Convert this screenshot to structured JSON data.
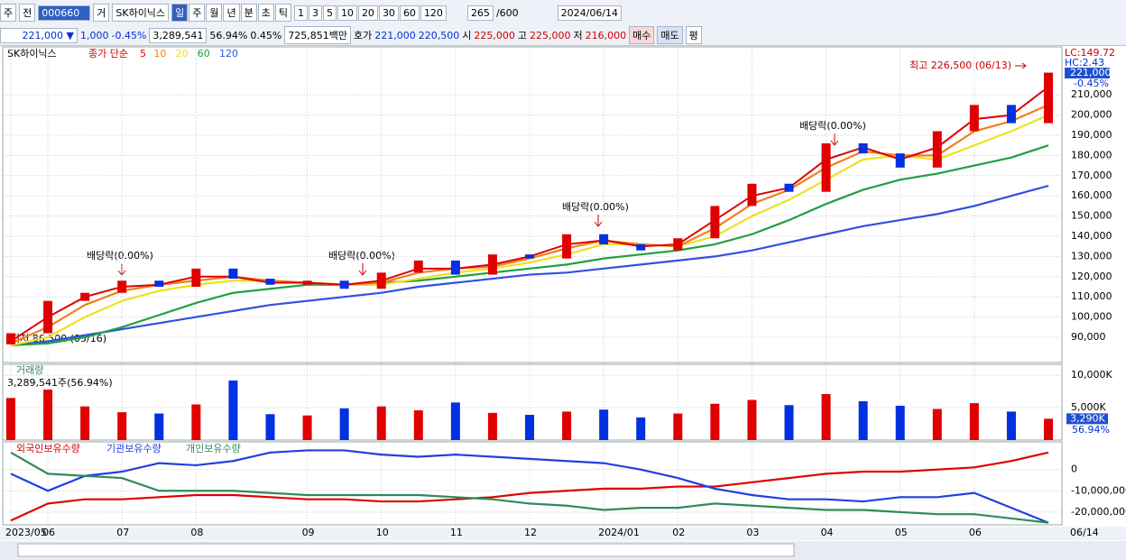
{
  "toolbar": {
    "period": "주",
    "prefix": "전",
    "code": "000660",
    "mode": "거",
    "name": "SK하이닉스",
    "intervals": [
      "일",
      "주",
      "월",
      "년",
      "분",
      "초",
      "틱"
    ],
    "counts": [
      "1",
      "3",
      "5",
      "10",
      "20",
      "30",
      "60",
      "120"
    ],
    "visible": "265",
    "total": "/600",
    "date": "2024/06/14"
  },
  "quote": {
    "price": "221,000 ▼",
    "change": "1,000",
    "change_pct": "-0.45%",
    "volume": "3,289,541",
    "volume_ratio": "56.94%",
    "turnover": "0.45%",
    "amount": "725,851백만",
    "bid_ask_label": "호가",
    "ask": "221,000",
    "bid": "220,500",
    "open_label": "시",
    "open": "225,000",
    "high_label": "고",
    "high": "225,000",
    "low_label": "저",
    "low": "216,000",
    "buy": "매수",
    "sell": "매도",
    "avg": "평"
  },
  "chart_data": [
    {
      "type": "candlestick",
      "legend_title": "SK하이닉스",
      "ma_label": "종가 단순",
      "lc": "LC:149.72",
      "hc": "HC:2.43",
      "last_price": "221,000",
      "last_change": "-0.45%",
      "high_note": "최고 226,500 (06/13)",
      "low_note": "최저 86,500 (05/16)",
      "ex_dividend": [
        "배당락(0.00%)",
        "배당락(0.00%)",
        "배당락(0.00%)",
        "배당락(0.00%)"
      ],
      "cursor_date": "06/14",
      "categories": [
        "2023/05",
        "06",
        null,
        "07",
        null,
        "08",
        null,
        null,
        "09",
        null,
        "10",
        null,
        "11",
        null,
        "12",
        null,
        "2024/01",
        null,
        "02",
        null,
        "03",
        null,
        "04",
        null,
        "05",
        null,
        "06",
        null,
        null
      ],
      "open": [
        86500,
        92000,
        108000,
        112000,
        118000,
        115000,
        124000,
        119000,
        116000,
        118000,
        114000,
        122000,
        128000,
        121000,
        131000,
        129000,
        141000,
        136000,
        133000,
        139000,
        155000,
        166000,
        162000,
        186000,
        181000,
        174000,
        192000,
        205000,
        196000
      ],
      "close": [
        92000,
        108000,
        112000,
        118000,
        115000,
        124000,
        119000,
        116000,
        118000,
        114000,
        122000,
        128000,
        121000,
        131000,
        129000,
        141000,
        136000,
        133000,
        139000,
        155000,
        166000,
        162000,
        186000,
        181000,
        174000,
        192000,
        205000,
        196000,
        221000
      ],
      "up_color": "#e00000",
      "down_color": "#0030e0",
      "series": [
        {
          "name": "5",
          "color": "#e00000",
          "values": [
            88000,
            100000,
            110000,
            115000,
            116000,
            120000,
            120000,
            117000,
            117000,
            116000,
            118000,
            124000,
            124000,
            126000,
            130000,
            136000,
            138000,
            135000,
            136000,
            148000,
            160000,
            164000,
            178000,
            184000,
            178000,
            184000,
            198000,
            200000,
            214000
          ]
        },
        {
          "name": "10",
          "color": "#f08020",
          "values": [
            87000,
            95000,
            106000,
            113000,
            116000,
            118000,
            120000,
            118000,
            117000,
            116000,
            117000,
            122000,
            124000,
            125000,
            129000,
            134000,
            138000,
            136000,
            135000,
            144000,
            156000,
            163000,
            174000,
            182000,
            180000,
            180000,
            192000,
            197000,
            205000
          ]
        },
        {
          "name": "20",
          "color": "#f0e020",
          "values": [
            86000,
            90000,
            100000,
            108000,
            113000,
            116000,
            118000,
            118000,
            117000,
            116000,
            116000,
            119000,
            122000,
            124000,
            127000,
            131000,
            136000,
            136000,
            135000,
            140000,
            150000,
            158000,
            168000,
            178000,
            180000,
            178000,
            185000,
            192000,
            200000
          ]
        },
        {
          "name": "60",
          "color": "#20a040",
          "values": [
            86000,
            87000,
            90000,
            95000,
            101000,
            107000,
            112000,
            114000,
            116000,
            116000,
            117000,
            118000,
            120000,
            122000,
            124000,
            126000,
            129000,
            131000,
            133000,
            136000,
            141000,
            148000,
            156000,
            163000,
            168000,
            171000,
            175000,
            179000,
            185000
          ]
        },
        {
          "name": "120",
          "color": "#3050e0",
          "values": [
            86000,
            88000,
            91000,
            94000,
            97000,
            100000,
            103000,
            106000,
            108000,
            110000,
            112000,
            115000,
            117000,
            119000,
            121000,
            122000,
            124000,
            126000,
            128000,
            130000,
            133000,
            137000,
            141000,
            145000,
            148000,
            151000,
            155000,
            160000,
            165000
          ]
        }
      ],
      "ylim": [
        77500,
        233750
      ],
      "yticks": [
        {
          "value": 90000,
          "label": "90,000"
        },
        {
          "value": 100000,
          "label": "100,000"
        },
        {
          "value": 110000,
          "label": "110,000"
        },
        {
          "value": 120000,
          "label": "120,000"
        },
        {
          "value": 130000,
          "label": "130,000"
        },
        {
          "value": 140000,
          "label": "140,000"
        },
        {
          "value": 150000,
          "label": "150,000"
        },
        {
          "value": 160000,
          "label": "160,000"
        },
        {
          "value": 170000,
          "label": "170,000"
        },
        {
          "value": 180000,
          "label": "180,000"
        },
        {
          "value": 190000,
          "label": "190,000"
        },
        {
          "value": 200000,
          "label": "200,000"
        },
        {
          "value": 210000,
          "label": "210,000"
        }
      ],
      "grid": true
    },
    {
      "type": "bar",
      "title": "거래량",
      "subtitle": "3,289,541주(56.94%)",
      "values": [
        6500,
        7800,
        5200,
        4300,
        4100,
        5500,
        9200,
        4000,
        3800,
        4900,
        5200,
        4600,
        5800,
        4200,
        3900,
        4400,
        4700,
        3500,
        4100,
        5600,
        6200,
        5400,
        7100,
        6000,
        5300,
        4800,
        5700,
        4400,
        3290
      ],
      "value_labels": {
        "28": "3,290K"
      },
      "last_ratio": "56.94%",
      "ylim": [
        0,
        11700
      ],
      "yticks": [
        {
          "value": 5000,
          "label": "5,000K"
        },
        {
          "value": 10000,
          "label": "10,000K"
        }
      ],
      "grid": true
    },
    {
      "type": "line",
      "series": [
        {
          "name": "외국인보유수량",
          "color": "#e00000",
          "values": [
            -24000000,
            -16000000,
            -14000000,
            -14000000,
            -13000000,
            -12000000,
            -12000000,
            -13000000,
            -14000000,
            -14000000,
            -15000000,
            -15000000,
            -14000000,
            -13000000,
            -11000000,
            -10000000,
            -9000000,
            -9000000,
            -8000000,
            -8000000,
            -6000000,
            -4000000,
            -2000000,
            -1000000,
            -1000000,
            0,
            1000000,
            4000000,
            8000000
          ]
        },
        {
          "name": "기관보유수량",
          "color": "#2040e0",
          "values": [
            -2000000,
            -10000000,
            -3000000,
            -1000000,
            3000000,
            2000000,
            4000000,
            8000000,
            9000000,
            9000000,
            7000000,
            6000000,
            7000000,
            6000000,
            5000000,
            4000000,
            3000000,
            0,
            -4000000,
            -9000000,
            -12000000,
            -14000000,
            -14000000,
            -15000000,
            -13000000,
            -13000000,
            -11000000,
            -18000000,
            -25000000
          ]
        },
        {
          "name": "개인보유수량",
          "color": "#2e8b57",
          "values": [
            8000000,
            -2000000,
            -3000000,
            -4000000,
            -10000000,
            -10000000,
            -10000000,
            -11000000,
            -12000000,
            -12000000,
            -12000000,
            -12000000,
            -13000000,
            -14000000,
            -16000000,
            -17000000,
            -19000000,
            -18000000,
            -18000000,
            -16000000,
            -17000000,
            -18000000,
            -19000000,
            -19000000,
            -20000000,
            -21000000,
            -21000000,
            -23000000,
            -25000000
          ]
        }
      ],
      "ylim": [
        -26000000,
        13000000
      ],
      "yticks": [
        0,
        {
          "value": -10000000,
          "label": "-10,000,000"
        },
        {
          "value": -20000000,
          "label": "-20,000,000"
        }
      ],
      "grid": true
    }
  ]
}
